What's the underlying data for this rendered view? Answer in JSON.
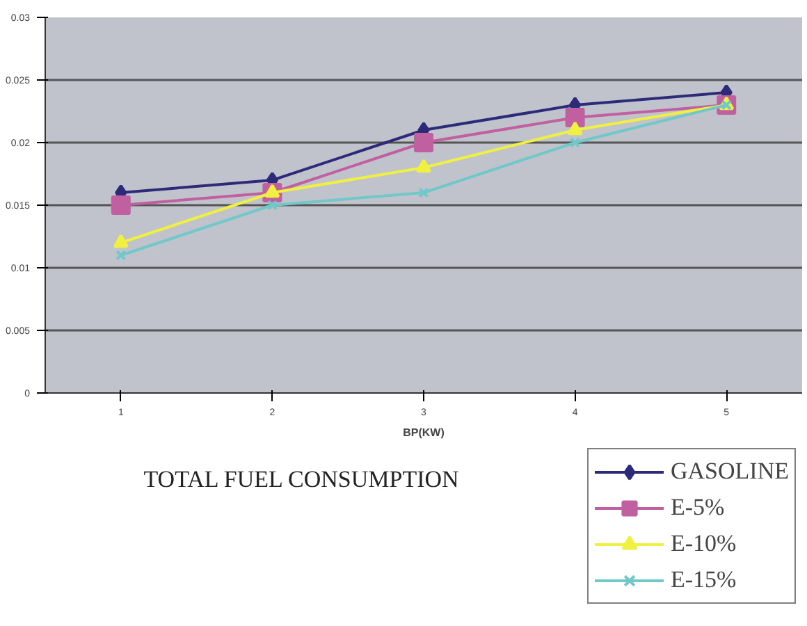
{
  "chart_data": {
    "type": "line",
    "title": "TOTAL FUEL CONSUMPTION",
    "xlabel": "BP(KW)",
    "x": [
      1,
      2,
      3,
      4,
      5
    ],
    "xlim": [
      0.5,
      5.5
    ],
    "xticks": [
      1,
      2,
      3,
      4,
      5
    ],
    "ylim": [
      0,
      0.03
    ],
    "yticks": [
      0,
      0.005,
      0.01,
      0.015,
      0.02,
      0.025,
      0.03
    ],
    "grid": "y",
    "legend": "bottom right",
    "series": [
      {
        "name": "GASOLINE",
        "color": "#2e2a7a",
        "marker": "diamond",
        "values": [
          0.016,
          0.017,
          0.021,
          0.023,
          0.024
        ]
      },
      {
        "name": "E-5%",
        "color": "#c060a0",
        "marker": "square",
        "values": [
          0.015,
          0.016,
          0.02,
          0.022,
          0.023
        ]
      },
      {
        "name": "E-10%",
        "color": "#f0f040",
        "marker": "triangle",
        "values": [
          0.012,
          0.016,
          0.018,
          0.021,
          0.023
        ]
      },
      {
        "name": "E-15%",
        "color": "#70c8c8",
        "marker": "cross",
        "values": [
          0.011,
          0.015,
          0.016,
          0.02,
          0.023
        ]
      }
    ]
  }
}
